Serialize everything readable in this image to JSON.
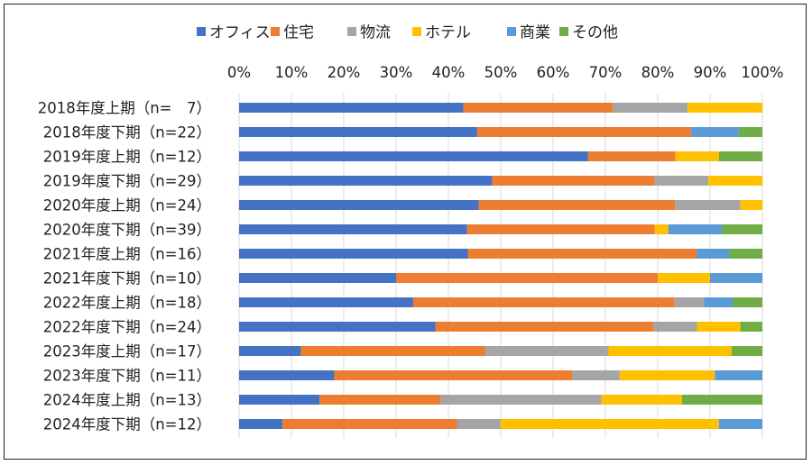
{
  "chart_data": {
    "type": "bar",
    "orientation": "horizontal",
    "stacked": "percent",
    "categories": [
      "2018年度上期（n=　7）",
      "2018年度下期（n=22）",
      "2019年度上期（n=12）",
      "2019年度下期（n=29）",
      "2020年度上期（n=24）",
      "2020年度下期（n=39）",
      "2021年度上期（n=16）",
      "2021年度下期（n=10）",
      "2022年度上期（n=18）",
      "2022年度下期（n=24）",
      "2023年度上期（n=17）",
      "2023年度下期（n=11）",
      "2024年度上期（n=13）",
      "2024年度下期（n=12）"
    ],
    "series": [
      {
        "name": "オフィス",
        "color": "#4472C4",
        "values": [
          42.9,
          45.5,
          66.7,
          48.3,
          45.8,
          43.6,
          43.8,
          30.0,
          33.3,
          37.5,
          11.8,
          18.2,
          15.4,
          8.3
        ]
      },
      {
        "name": "住宅",
        "color": "#ED7D31",
        "values": [
          28.6,
          40.9,
          16.7,
          31.0,
          37.5,
          35.9,
          43.8,
          50.0,
          50.0,
          41.7,
          35.3,
          45.5,
          23.1,
          33.3
        ]
      },
      {
        "name": "物流",
        "color": "#A5A5A5",
        "values": [
          14.3,
          0,
          0,
          10.3,
          12.5,
          0,
          0,
          0,
          5.6,
          8.3,
          23.5,
          9.1,
          30.8,
          8.3
        ]
      },
      {
        "name": "ホテル",
        "color": "#FFC000",
        "values": [
          14.3,
          0,
          8.3,
          10.3,
          4.2,
          2.6,
          0,
          10.0,
          0,
          8.3,
          23.5,
          18.2,
          15.4,
          41.7
        ]
      },
      {
        "name": "商業",
        "color": "#5B9BD5",
        "values": [
          0,
          9.1,
          0,
          0,
          0,
          10.3,
          6.3,
          10.0,
          5.6,
          0,
          0,
          9.1,
          0,
          8.3
        ]
      },
      {
        "name": "その他",
        "color": "#70AD47",
        "values": [
          0,
          4.5,
          8.3,
          0,
          0,
          7.7,
          6.3,
          0,
          5.6,
          4.2,
          5.9,
          0,
          15.4,
          0
        ]
      }
    ],
    "xlim": [
      0,
      100
    ],
    "xticks": [
      "0%",
      "10%",
      "20%",
      "30%",
      "40%",
      "50%",
      "60%",
      "70%",
      "80%",
      "90%",
      "100%"
    ],
    "legend_position": "top",
    "grid": true
  }
}
